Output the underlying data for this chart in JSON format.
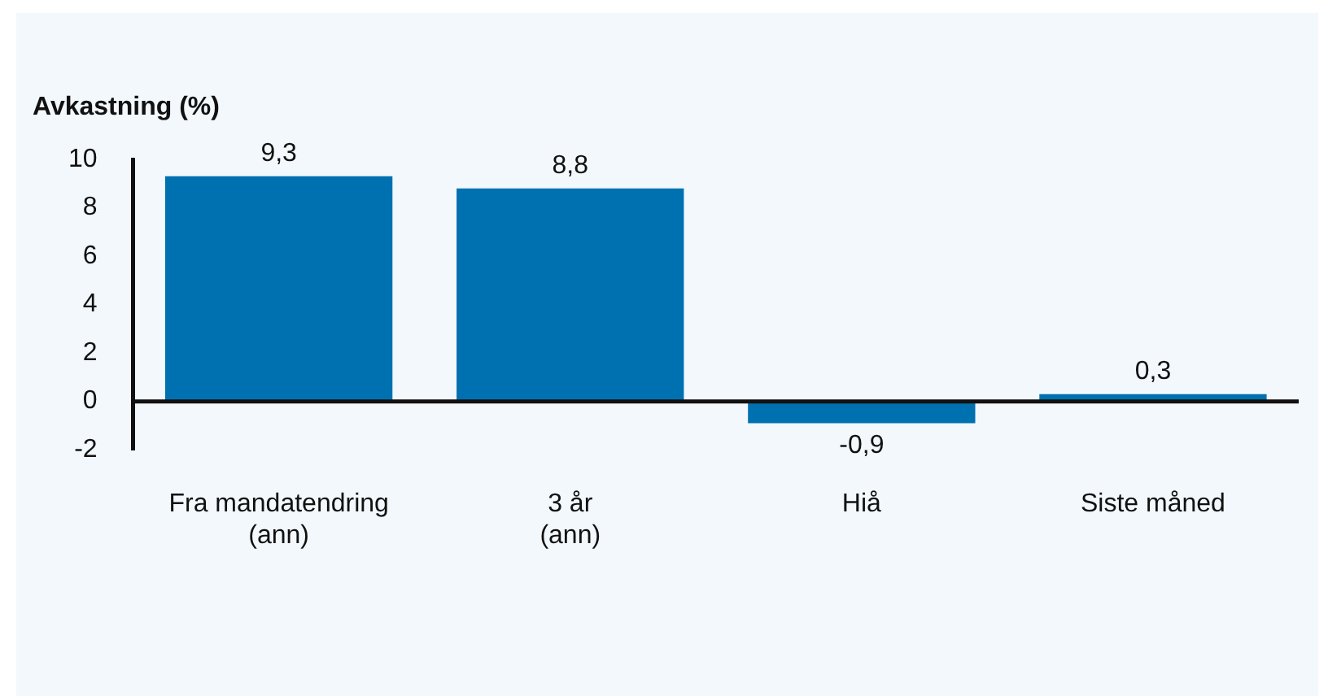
{
  "chart_data": {
    "type": "bar",
    "ylabel": "Avkastning (%)",
    "categories": [
      "Fra mandatendring\n(ann)",
      "3 år\n(ann)",
      "Hiå",
      "Siste måned"
    ],
    "series": [
      {
        "color": "#0071b0",
        "values": [
          9.3,
          8.8,
          -0.9,
          0.3
        ],
        "value_labels": [
          "9,3",
          "8,8",
          "-0,9",
          "0,3"
        ]
      }
    ],
    "ylim": [
      -2,
      10
    ],
    "yticks": [
      -2,
      0,
      2,
      4,
      6,
      8,
      10
    ]
  }
}
